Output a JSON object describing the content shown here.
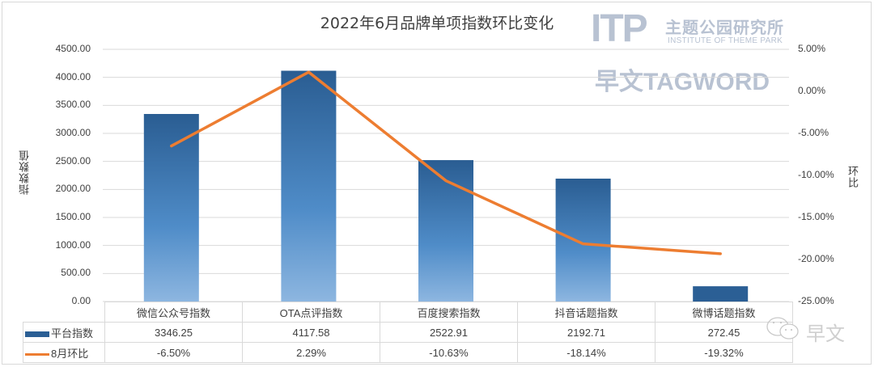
{
  "chart_data": {
    "type": "bar+line",
    "title": "2022年6月品牌单项指数环比变化",
    "xlabel": "",
    "ylabel": "指数数值",
    "y2label": "环比",
    "categories": [
      "微信公众号指数",
      "OTA点评指数",
      "百度搜索指数",
      "抖音话题指数",
      "微博话题指数"
    ],
    "series": [
      {
        "name": "平台指数",
        "type": "bar",
        "axis": "left",
        "color": "#2b5f95",
        "values": [
          3346.25,
          4117.58,
          2522.91,
          2192.71,
          272.45
        ],
        "labels": [
          "3346.25",
          "4117.58",
          "2522.91",
          "2192.71",
          "272.45"
        ]
      },
      {
        "name": "8月环比",
        "type": "line",
        "axis": "right",
        "color": "#ed7d31",
        "values": [
          -6.5,
          2.29,
          -10.63,
          -18.14,
          -19.32
        ],
        "labels": [
          "-6.50%",
          "2.29%",
          "-10.63%",
          "-18.14%",
          "-19.32%"
        ]
      }
    ],
    "ylim": [
      0,
      4500
    ],
    "y_ticks": [
      "4500.00",
      "4000.00",
      "3500.00",
      "3000.00",
      "2500.00",
      "2000.00",
      "1500.00",
      "1000.00",
      "500.00",
      "0.00"
    ],
    "y2lim": [
      -25,
      5
    ],
    "y2_ticks": [
      "5.00%",
      "0.00%",
      "-5.00%",
      "-10.00%",
      "-15.00%",
      "-20.00%",
      "-25.00%"
    ],
    "grid": true,
    "legend_position": "data-table-bottom"
  },
  "watermarks": {
    "itp_logo": "ITP",
    "itp_cn": "主题公园研究所",
    "itp_en": "INSTITUTE OF THEME PARK",
    "tagword": "早文TAGWORD",
    "wechat_label": "早文"
  }
}
